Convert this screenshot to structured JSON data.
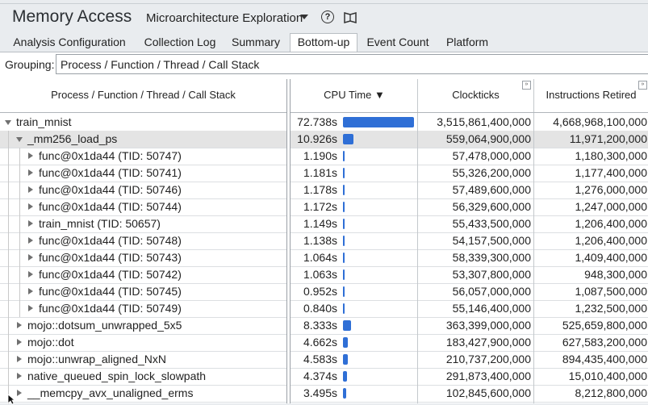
{
  "header": {
    "title": "Memory Access",
    "analysis_type": "Microarchitecture Exploration"
  },
  "tabs": [
    {
      "label": "Analysis Configuration",
      "active": false
    },
    {
      "label": "Collection Log",
      "active": false
    },
    {
      "label": "Summary",
      "active": false
    },
    {
      "label": "Bottom-up",
      "active": true
    },
    {
      "label": "Event Count",
      "active": false
    },
    {
      "label": "Platform",
      "active": false
    }
  ],
  "grouping": {
    "label": "Grouping:",
    "value": "Process / Function / Thread / Call Stack"
  },
  "columns": {
    "name": "Process / Function / Thread / Call Stack",
    "cpu_time": "CPU Time ▼",
    "clockticks": "Clockticks",
    "instructions": "Instructions Retired"
  },
  "colors": {
    "bar": "#2f6fd6",
    "selected_row": "#e4e4e4"
  },
  "rows": [
    {
      "name": "train_mnist",
      "cpu": "72.738s",
      "cpu_value": 72.738,
      "clock": "3,515,861,400,000",
      "instr": "4,668,968,100,000",
      "level": 0,
      "state": "expanded"
    },
    {
      "name": "_mm256_load_ps",
      "cpu": "10.926s",
      "cpu_value": 10.926,
      "clock": "559,064,900,000",
      "instr": "11,971,200,000",
      "level": 1,
      "state": "expanded",
      "selected": true
    },
    {
      "name": "func@0x1da44 (TID: 50747)",
      "cpu": "1.190s",
      "cpu_value": 1.19,
      "clock": "57,478,000,000",
      "instr": "1,180,300,000",
      "level": 2,
      "state": "collapsed"
    },
    {
      "name": "func@0x1da44 (TID: 50741)",
      "cpu": "1.181s",
      "cpu_value": 1.181,
      "clock": "55,326,200,000",
      "instr": "1,177,400,000",
      "level": 2,
      "state": "collapsed"
    },
    {
      "name": "func@0x1da44 (TID: 50746)",
      "cpu": "1.178s",
      "cpu_value": 1.178,
      "clock": "57,489,600,000",
      "instr": "1,276,000,000",
      "level": 2,
      "state": "collapsed"
    },
    {
      "name": "func@0x1da44 (TID: 50744)",
      "cpu": "1.172s",
      "cpu_value": 1.172,
      "clock": "56,329,600,000",
      "instr": "1,247,000,000",
      "level": 2,
      "state": "collapsed"
    },
    {
      "name": "train_mnist (TID: 50657)",
      "cpu": "1.149s",
      "cpu_value": 1.149,
      "clock": "55,433,500,000",
      "instr": "1,206,400,000",
      "level": 2,
      "state": "collapsed"
    },
    {
      "name": "func@0x1da44 (TID: 50748)",
      "cpu": "1.138s",
      "cpu_value": 1.138,
      "clock": "54,157,500,000",
      "instr": "1,206,400,000",
      "level": 2,
      "state": "collapsed"
    },
    {
      "name": "func@0x1da44 (TID: 50743)",
      "cpu": "1.064s",
      "cpu_value": 1.064,
      "clock": "58,339,300,000",
      "instr": "1,409,400,000",
      "level": 2,
      "state": "collapsed"
    },
    {
      "name": "func@0x1da44 (TID: 50742)",
      "cpu": "1.063s",
      "cpu_value": 1.063,
      "clock": "53,307,800,000",
      "instr": "948,300,000",
      "level": 2,
      "state": "collapsed"
    },
    {
      "name": "func@0x1da44 (TID: 50745)",
      "cpu": "0.952s",
      "cpu_value": 0.952,
      "clock": "56,057,000,000",
      "instr": "1,087,500,000",
      "level": 2,
      "state": "collapsed"
    },
    {
      "name": "func@0x1da44 (TID: 50749)",
      "cpu": "0.840s",
      "cpu_value": 0.84,
      "clock": "55,146,400,000",
      "instr": "1,232,500,000",
      "level": 2,
      "state": "collapsed"
    },
    {
      "name": "mojo::dotsum_unwrapped_5x5",
      "cpu": "8.333s",
      "cpu_value": 8.333,
      "clock": "363,399,000,000",
      "instr": "525,659,800,000",
      "level": 1,
      "state": "collapsed"
    },
    {
      "name": "mojo::dot",
      "cpu": "4.662s",
      "cpu_value": 4.662,
      "clock": "183,427,900,000",
      "instr": "627,583,200,000",
      "level": 1,
      "state": "collapsed"
    },
    {
      "name": "mojo::unwrap_aligned_NxN",
      "cpu": "4.583s",
      "cpu_value": 4.583,
      "clock": "210,737,200,000",
      "instr": "894,435,400,000",
      "level": 1,
      "state": "collapsed"
    },
    {
      "name": "native_queued_spin_lock_slowpath",
      "cpu": "4.374s",
      "cpu_value": 4.374,
      "clock": "291,873,400,000",
      "instr": "15,010,400,000",
      "level": 1,
      "state": "collapsed"
    },
    {
      "name": "__memcpy_avx_unaligned_erms",
      "cpu": "3.495s",
      "cpu_value": 3.495,
      "clock": "102,845,600,000",
      "instr": "8,212,800,000",
      "level": 1,
      "state": "collapsed"
    }
  ]
}
